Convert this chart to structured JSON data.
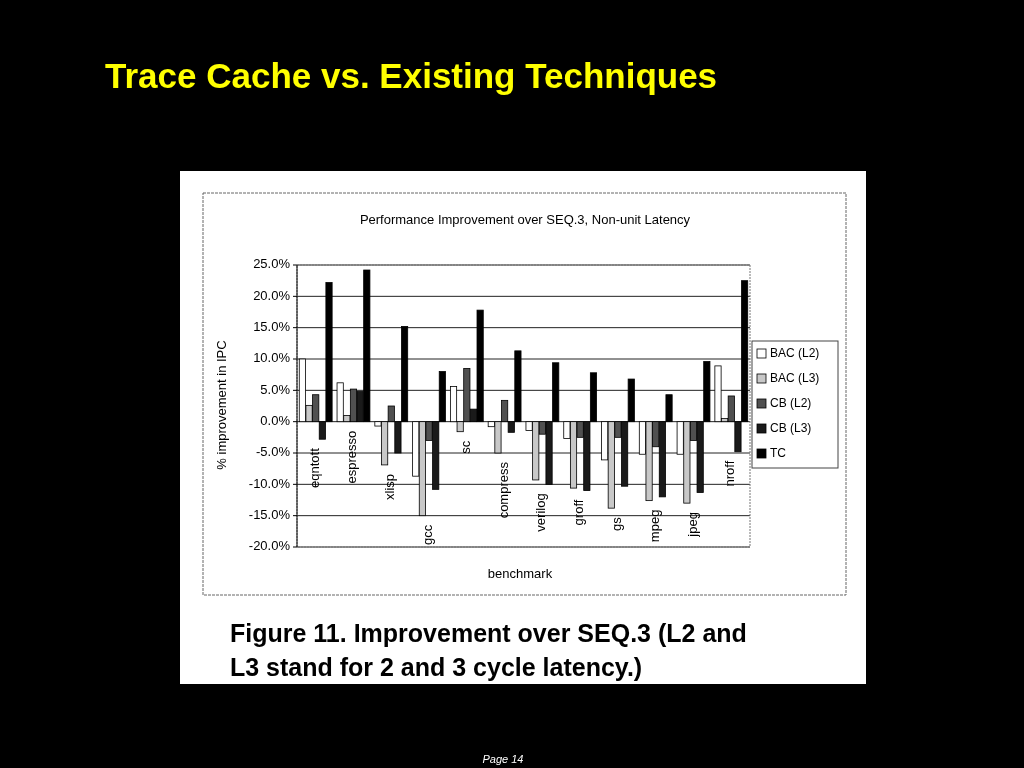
{
  "chart_data": {
    "type": "bar",
    "title": "Trace Cache vs. Existing Techniques",
    "subtitle": "Performance Improvement over SEQ.3, Non-unit Latency",
    "xlabel": "benchmark",
    "ylabel": "% improvement in IPC",
    "annotations": [
      "Figure 11. Improvement over SEQ.3 (L2 and L3 stand for 2 and 3 cycle latency.)",
      "Page 14"
    ],
    "categories": [
      "eqntott",
      "espresso",
      "xlisp",
      "gcc",
      "sc",
      "compress",
      "verilog",
      "groff",
      "gs",
      "mpeg",
      "jpeg",
      "nroff"
    ],
    "series": [
      {
        "name": "BAC (L2)",
        "color": "#ffffff",
        "values": [
          10.0,
          6.2,
          -0.7,
          -8.7,
          5.6,
          -0.8,
          -1.4,
          -2.7,
          -6.1,
          -5.2,
          -5.2,
          8.9
        ]
      },
      {
        "name": "BAC (L3)",
        "color": "#c8c8c8",
        "values": [
          2.6,
          1.0,
          -6.9,
          -15.0,
          -1.6,
          -5.0,
          -9.3,
          -10.6,
          -13.8,
          -12.6,
          -13.0,
          0.5
        ]
      },
      {
        "name": "CB (L2)",
        "color": "#505050",
        "values": [
          4.3,
          5.2,
          2.5,
          -3.0,
          8.5,
          3.4,
          -2.0,
          -2.5,
          -2.5,
          -4.0,
          -3.0,
          4.1
        ]
      },
      {
        "name": "CB (L3)",
        "color": "#1a1a1a",
        "values": [
          -2.8,
          4.8,
          -5.0,
          -10.8,
          2.0,
          -1.7,
          -10.0,
          -11.0,
          -10.3,
          -12.0,
          -11.3,
          -4.8
        ]
      },
      {
        "name": "TC",
        "color": "#000000",
        "values": [
          22.2,
          24.2,
          15.2,
          8.0,
          17.8,
          11.3,
          9.4,
          7.8,
          6.8,
          4.3,
          9.6,
          22.5
        ]
      }
    ],
    "ylim": [
      -20,
      25
    ],
    "yticks": [
      {
        "value": -20,
        "label": "-20.0%"
      },
      {
        "value": -15,
        "label": "-15.0%"
      },
      {
        "value": -10,
        "label": "-10.0%"
      },
      {
        "value": -5,
        "label": "-5.0%"
      },
      {
        "value": 0,
        "label": "0.0%"
      },
      {
        "value": 5,
        "label": "5.0%"
      },
      {
        "value": 10,
        "label": "10.0%"
      },
      {
        "value": 15,
        "label": "15.0%"
      },
      {
        "value": 20,
        "label": "20.0%"
      },
      {
        "value": 25,
        "label": "25.0%"
      }
    ],
    "grid": "y",
    "legend": "right"
  }
}
